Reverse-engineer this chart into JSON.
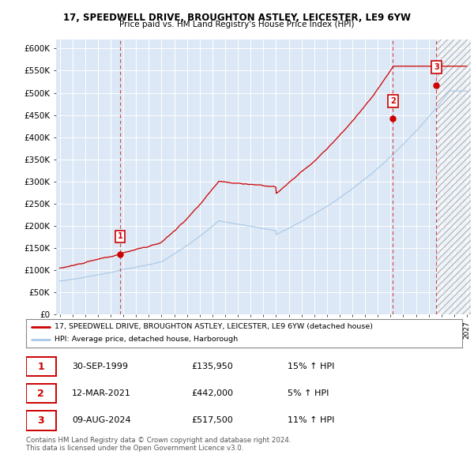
{
  "title1": "17, SPEEDWELL DRIVE, BROUGHTON ASTLEY, LEICESTER, LE9 6YW",
  "title2": "Price paid vs. HM Land Registry's House Price Index (HPI)",
  "ylim": [
    0,
    620000
  ],
  "yticks": [
    0,
    50000,
    100000,
    150000,
    200000,
    250000,
    300000,
    350000,
    400000,
    450000,
    500000,
    550000,
    600000
  ],
  "ytick_labels": [
    "£0",
    "£50K",
    "£100K",
    "£150K",
    "£200K",
    "£250K",
    "£300K",
    "£350K",
    "£400K",
    "£450K",
    "£500K",
    "£550K",
    "£600K"
  ],
  "hpi_color": "#a8c8e8",
  "price_color": "#cc0000",
  "background_color": "#dce8f5",
  "shade_start": 2024.6,
  "sale_points": [
    {
      "date_num": 1999.75,
      "price": 135950,
      "label": "1"
    },
    {
      "date_num": 2021.19,
      "price": 442000,
      "label": "2"
    },
    {
      "date_num": 2024.6,
      "price": 517500,
      "label": "3"
    }
  ],
  "sale_labels": [
    {
      "label": "1",
      "date": "30-SEP-1999",
      "price": "£135,950",
      "hpi_pct": "15% ↑ HPI"
    },
    {
      "label": "2",
      "date": "12-MAR-2021",
      "price": "£442,000",
      "hpi_pct": "5% ↑ HPI"
    },
    {
      "label": "3",
      "date": "09-AUG-2024",
      "price": "£517,500",
      "hpi_pct": "11% ↑ HPI"
    }
  ],
  "legend_line1": "17, SPEEDWELL DRIVE, BROUGHTON ASTLEY, LEICESTER, LE9 6YW (detached house)",
  "legend_line2": "HPI: Average price, detached house, Harborough",
  "footnote1": "Contains HM Land Registry data © Crown copyright and database right 2024.",
  "footnote2": "This data is licensed under the Open Government Licence v3.0.",
  "xlim_left": 1994.7,
  "xlim_right": 2027.3
}
